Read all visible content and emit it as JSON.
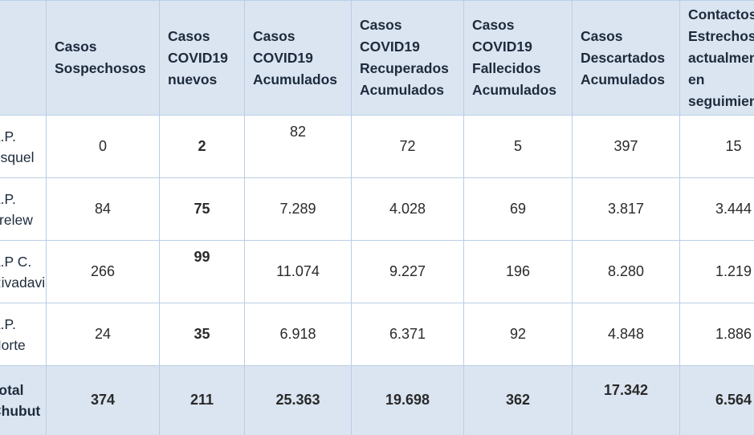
{
  "table": {
    "columns": [
      "",
      "Casos Sospechosos",
      "Casos COVID19 nuevos",
      "Casos COVID19 Acumulados",
      "Casos COVID19 Recuperados Acumulados",
      "Casos COVID19 Fallecidos Acumulados",
      "Casos Descartados Acumulados",
      "Contactos Estrechos actualmente en seguimiento"
    ],
    "columns_lines": [
      [],
      [
        "Casos",
        "Sospechosos"
      ],
      [
        "Casos",
        "COVID19",
        "nuevos"
      ],
      [
        "Casos",
        "COVID19",
        "Acumulados"
      ],
      [
        "Casos",
        "COVID19",
        "Recuperados",
        "Acumulados"
      ],
      [
        "Casos",
        "COVID19",
        "Fallecidos",
        "Acumulados"
      ],
      [
        "Casos",
        "Descartados",
        "Acumulados"
      ],
      [
        "Contactos",
        "Estrechos",
        "actualmente",
        "en",
        "seguimiento"
      ]
    ],
    "rows": [
      {
        "label_lines": [
          "A.P.",
          "Esquel"
        ],
        "values": [
          "0",
          "2",
          "82",
          "72",
          "5",
          "397",
          "15"
        ]
      },
      {
        "label_lines": [
          "A.P.",
          "Trelew"
        ],
        "values": [
          "84",
          "75",
          "7.289",
          "4.028",
          "69",
          "3.817",
          "3.444"
        ]
      },
      {
        "label_lines": [
          "A.P C.",
          "Rivadavia"
        ],
        "values": [
          "266",
          "99",
          "11.074",
          "9.227",
          "196",
          "8.280",
          "1.219"
        ]
      },
      {
        "label_lines": [
          "A.P.",
          "Norte"
        ],
        "values": [
          "24",
          "35",
          "6.918",
          "6.371",
          "92",
          "4.848",
          "1.886"
        ]
      }
    ],
    "total": {
      "label_lines": [
        "Total",
        "Chubut"
      ],
      "values": [
        "374",
        "211",
        "25.363",
        "19.698",
        "362",
        "17.342",
        "6.564"
      ]
    }
  },
  "colors": {
    "header_bg": "#dbe5f1",
    "grid": "#b9cee6",
    "text": "#1d2b3c"
  }
}
